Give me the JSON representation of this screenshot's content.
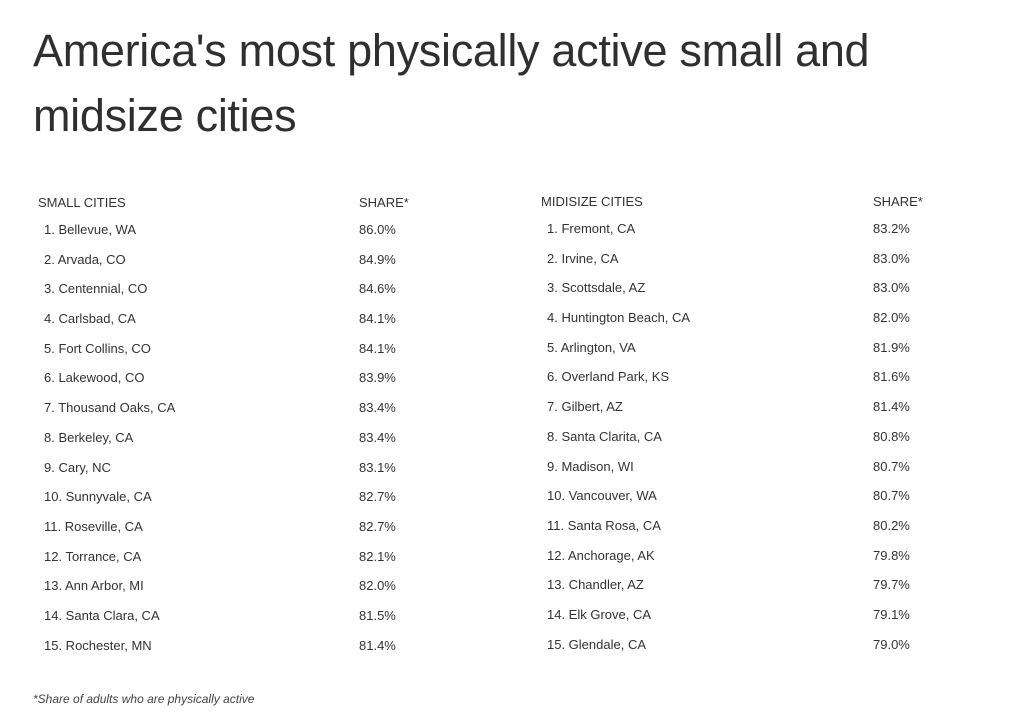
{
  "title": "America's most physically active small and midsize cities",
  "small": {
    "header": "SMALL CITIES",
    "share_header": "SHARE*",
    "rows": [
      {
        "name": "1. Bellevue, WA",
        "share": "86.0%"
      },
      {
        "name": "2. Arvada, CO",
        "share": "84.9%"
      },
      {
        "name": "3. Centennial, CO",
        "share": "84.6%"
      },
      {
        "name": "4. Carlsbad, CA",
        "share": "84.1%"
      },
      {
        "name": "5. Fort Collins, CO",
        "share": "84.1%"
      },
      {
        "name": "6. Lakewood, CO",
        "share": "83.9%"
      },
      {
        "name": "7. Thousand Oaks, CA",
        "share": "83.4%"
      },
      {
        "name": "8. Berkeley, CA",
        "share": "83.4%"
      },
      {
        "name": "9. Cary, NC",
        "share": "83.1%"
      },
      {
        "name": "10. Sunnyvale, CA",
        "share": "82.7%"
      },
      {
        "name": "11. Roseville, CA",
        "share": "82.7%"
      },
      {
        "name": "12. Torrance, CA",
        "share": "82.1%"
      },
      {
        "name": "13. Ann Arbor, MI",
        "share": "82.0%"
      },
      {
        "name": "14. Santa Clara, CA",
        "share": "81.5%"
      },
      {
        "name": "15. Rochester, MN",
        "share": "81.4%"
      }
    ]
  },
  "midsize": {
    "header": "MIDISIZE CITIES",
    "share_header": "SHARE*",
    "rows": [
      {
        "name": "1. Fremont, CA",
        "share": "83.2%"
      },
      {
        "name": "2. Irvine, CA",
        "share": "83.0%"
      },
      {
        "name": "3. Scottsdale, AZ",
        "share": "83.0%"
      },
      {
        "name": "4. Huntington Beach, CA",
        "share": "82.0%"
      },
      {
        "name": "5. Arlington, VA",
        "share": "81.9%"
      },
      {
        "name": "6. Overland Park, KS",
        "share": "81.6%"
      },
      {
        "name": "7. Gilbert, AZ",
        "share": "81.4%"
      },
      {
        "name": "8. Santa Clarita, CA",
        "share": "80.8%"
      },
      {
        "name": "9. Madison, WI",
        "share": "80.7%"
      },
      {
        "name": "10. Vancouver, WA",
        "share": "80.7%"
      },
      {
        "name": "11. Santa Rosa, CA",
        "share": "80.2%"
      },
      {
        "name": "12. Anchorage, AK",
        "share": "79.8%"
      },
      {
        "name": "13. Chandler, AZ",
        "share": "79.7%"
      },
      {
        "name": "14. Elk Grove, CA",
        "share": "79.1%"
      },
      {
        "name": "15. Glendale, CA",
        "share": "79.0%"
      }
    ]
  },
  "footnote": "*Share of adults who are physically active"
}
